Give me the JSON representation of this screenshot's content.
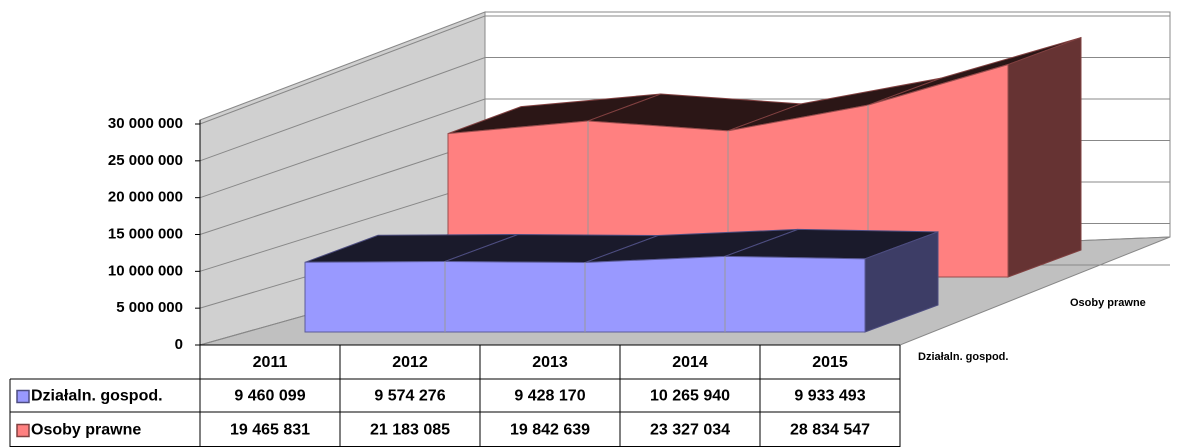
{
  "chart_data": {
    "type": "area3d",
    "categories": [
      "2011",
      "2012",
      "2013",
      "2014",
      "2015"
    ],
    "series": [
      {
        "name": "Działaln. gospod.",
        "color": "#9999ff",
        "values": [
          9460099,
          9574276,
          9428170,
          10265940,
          9933493
        ],
        "value_labels": [
          "9 460 099",
          "9 574 276",
          "9 428 170",
          "10 265 940",
          "9 933 493"
        ]
      },
      {
        "name": "Osoby prawne",
        "color": "#ff8080",
        "values": [
          19465831,
          21183085,
          19842639,
          23327034,
          28834547
        ],
        "value_labels": [
          "19 465 831",
          "21 183 085",
          "19 842 639",
          "23 327 034",
          "28 834 547"
        ]
      }
    ],
    "ylim": [
      0,
      30000000
    ],
    "yticks": [
      0,
      {
        "value": 5000000,
        "label": "5 000 000"
      },
      {
        "value": 10000000,
        "label": "10 000 000"
      },
      {
        "value": 15000000,
        "label": "15 000 000"
      },
      {
        "value": 20000000,
        "label": "20 000 000"
      },
      {
        "value": 25000000,
        "label": "25 000 000"
      },
      {
        "value": 30000000,
        "label": "30 000 000"
      }
    ],
    "grid": true
  }
}
